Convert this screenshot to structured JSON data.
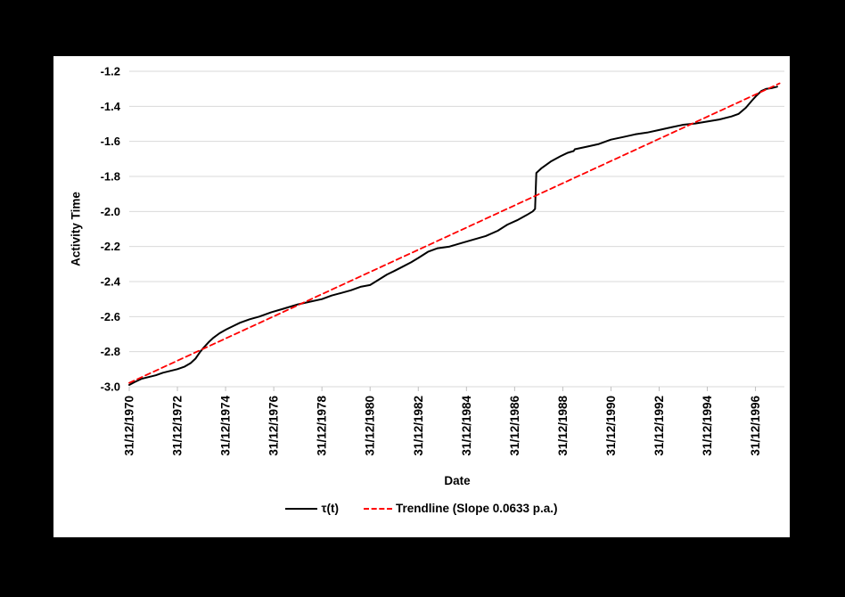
{
  "frame": {
    "background_color": "#000000",
    "card_background_color": "#FFFFFF"
  },
  "chart_data": {
    "type": "line",
    "title": "",
    "xlabel": "Date",
    "ylabel": "Activity Time",
    "x_unit_note": "x values are years after 31/12/1970",
    "xlim": [
      0,
      27.2
    ],
    "ylim": [
      -3.0,
      -1.2
    ],
    "y_ticks": [
      -1.2,
      -1.4,
      -1.6,
      -1.8,
      -2.0,
      -2.2,
      -2.4,
      -2.6,
      -2.8,
      -3.0
    ],
    "x_tick_positions": [
      0,
      2,
      4,
      6,
      8,
      10,
      12,
      14,
      16,
      18,
      20,
      22,
      24,
      26
    ],
    "x_tick_labels": [
      "31/12/1970",
      "31/12/1972",
      "31/12/1974",
      "31/12/1976",
      "31/12/1978",
      "31/12/1980",
      "31/12/1982",
      "31/12/1984",
      "31/12/1986",
      "31/12/1988",
      "31/12/1990",
      "31/12/1992",
      "31/12/1994",
      "31/12/1996"
    ],
    "grid": "horizontal",
    "legend_position": "bottom",
    "colors": {
      "gridline": "#D9D9D9",
      "tick_mark": "#BFBFBF",
      "text": "#000000",
      "tau_line": "#000000",
      "trendline": "#FF0000"
    },
    "series": [
      {
        "name": "τ(t)",
        "color": "#000000",
        "style": "solid",
        "points": [
          [
            0.0,
            -2.99
          ],
          [
            0.2,
            -2.975
          ],
          [
            0.5,
            -2.955
          ],
          [
            0.8,
            -2.945
          ],
          [
            1.1,
            -2.935
          ],
          [
            1.4,
            -2.92
          ],
          [
            1.7,
            -2.91
          ],
          [
            2.0,
            -2.9
          ],
          [
            2.3,
            -2.885
          ],
          [
            2.55,
            -2.865
          ],
          [
            2.75,
            -2.84
          ],
          [
            2.95,
            -2.8
          ],
          [
            3.1,
            -2.775
          ],
          [
            3.3,
            -2.745
          ],
          [
            3.5,
            -2.72
          ],
          [
            3.75,
            -2.695
          ],
          [
            4.0,
            -2.675
          ],
          [
            4.3,
            -2.655
          ],
          [
            4.6,
            -2.635
          ],
          [
            5.0,
            -2.615
          ],
          [
            5.4,
            -2.6
          ],
          [
            5.9,
            -2.575
          ],
          [
            6.4,
            -2.555
          ],
          [
            7.0,
            -2.53
          ],
          [
            7.5,
            -2.515
          ],
          [
            8.0,
            -2.5
          ],
          [
            8.4,
            -2.48
          ],
          [
            8.8,
            -2.465
          ],
          [
            9.2,
            -2.45
          ],
          [
            9.6,
            -2.43
          ],
          [
            10.0,
            -2.42
          ],
          [
            10.35,
            -2.39
          ],
          [
            10.7,
            -2.36
          ],
          [
            11.0,
            -2.34
          ],
          [
            11.35,
            -2.315
          ],
          [
            11.7,
            -2.29
          ],
          [
            12.0,
            -2.265
          ],
          [
            12.4,
            -2.23
          ],
          [
            12.8,
            -2.21
          ],
          [
            13.3,
            -2.2
          ],
          [
            13.8,
            -2.18
          ],
          [
            14.3,
            -2.16
          ],
          [
            14.8,
            -2.14
          ],
          [
            15.3,
            -2.11
          ],
          [
            15.7,
            -2.075
          ],
          [
            16.1,
            -2.05
          ],
          [
            16.5,
            -2.02
          ],
          [
            16.75,
            -2.0
          ],
          [
            16.85,
            -1.985
          ],
          [
            16.9,
            -1.78
          ],
          [
            17.1,
            -1.755
          ],
          [
            17.5,
            -1.715
          ],
          [
            17.9,
            -1.685
          ],
          [
            18.2,
            -1.665
          ],
          [
            18.45,
            -1.655
          ],
          [
            18.5,
            -1.645
          ],
          [
            19.0,
            -1.63
          ],
          [
            19.5,
            -1.615
          ],
          [
            20.0,
            -1.59
          ],
          [
            20.5,
            -1.575
          ],
          [
            21.0,
            -1.56
          ],
          [
            21.5,
            -1.55
          ],
          [
            22.0,
            -1.535
          ],
          [
            22.5,
            -1.52
          ],
          [
            23.0,
            -1.505
          ],
          [
            23.5,
            -1.498
          ],
          [
            24.0,
            -1.487
          ],
          [
            24.5,
            -1.475
          ],
          [
            25.0,
            -1.458
          ],
          [
            25.3,
            -1.443
          ],
          [
            25.6,
            -1.408
          ],
          [
            25.85,
            -1.368
          ],
          [
            26.05,
            -1.338
          ],
          [
            26.25,
            -1.312
          ],
          [
            26.45,
            -1.3
          ],
          [
            26.7,
            -1.295
          ],
          [
            26.9,
            -1.288
          ]
        ]
      },
      {
        "name": "Trendline (Slope 0.0633 p.a.)",
        "color": "#FF0000",
        "style": "dashed",
        "slope_per_year": 0.0633,
        "points": [
          [
            0.0,
            -2.978
          ],
          [
            27.0,
            -1.269
          ]
        ]
      }
    ]
  }
}
